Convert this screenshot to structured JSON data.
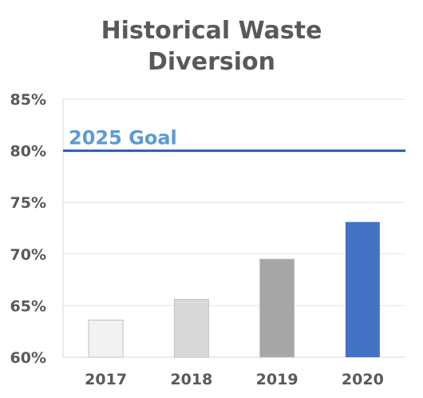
{
  "chart_data": {
    "type": "bar",
    "title_lines": [
      "Historical Waste",
      "Diversion"
    ],
    "categories": [
      "2017",
      "2018",
      "2019",
      "2020"
    ],
    "values": [
      63.6,
      65.6,
      69.5,
      73.1
    ],
    "bar_colors": [
      "#f2f2f2",
      "#d9d9d9",
      "#a6a6a6",
      "#4472c4"
    ],
    "ylim": [
      60,
      85
    ],
    "y_ticks": [
      60,
      65,
      70,
      75,
      80,
      85
    ],
    "y_tick_labels": [
      "60%",
      "65%",
      "70%",
      "75%",
      "80%",
      "85%"
    ],
    "grid": true,
    "reference_line": {
      "value": 80,
      "label": "2025 Goal",
      "color": "#2e5fa8",
      "label_color": "#5b9bd5"
    }
  }
}
